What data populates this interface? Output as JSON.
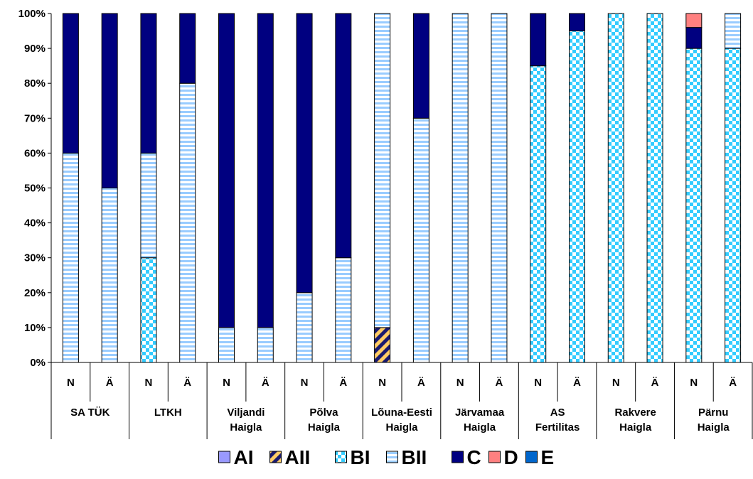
{
  "chart_data": {
    "type": "bar",
    "stacked": true,
    "y_axis": {
      "range": [
        0,
        100
      ],
      "ticks": [
        "0%",
        "10%",
        "20%",
        "30%",
        "40%",
        "50%",
        "60%",
        "70%",
        "80%",
        "90%",
        "100%"
      ]
    },
    "groups": [
      "SA TÜK",
      "LTKH",
      "Viljandi Haigla",
      "Põlva Haigla",
      "Lõuna-Eesti Haigla",
      "Järvamaa Haigla",
      "AS Fertilitas",
      "Rakvere Haigla",
      "Pärnu Haigla"
    ],
    "subcategory_labels": [
      "N",
      "Ä"
    ],
    "categories": [
      "SA TÜK N",
      "SA TÜK Ä",
      "LTKH N",
      "LTKH Ä",
      "Viljandi Haigla N",
      "Viljandi Haigla Ä",
      "Põlva Haigla N",
      "Põlva Haigla Ä",
      "Lõuna-Eesti Haigla N",
      "Lõuna-Eesti Haigla Ä",
      "Järvamaa Haigla N",
      "Järvamaa Haigla Ä",
      "AS Fertilitas N",
      "AS Fertilitas Ä",
      "Rakvere Haigla N",
      "Rakvere Haigla Ä",
      "Pärnu Haigla N",
      "Pärnu Haigla Ä"
    ],
    "series": [
      {
        "name": "AI",
        "color": "#9999ff",
        "pattern": "solid",
        "values": [
          0,
          0,
          0,
          0,
          0,
          0,
          0,
          0,
          0,
          0,
          0,
          0,
          0,
          0,
          0,
          0,
          0,
          0
        ]
      },
      {
        "name": "AII",
        "color": "#1a1a6e",
        "pattern": "diagonal",
        "values": [
          0,
          0,
          0,
          0,
          0,
          0,
          0,
          0,
          10,
          0,
          0,
          0,
          0,
          0,
          0,
          0,
          0,
          0
        ]
      },
      {
        "name": "BI",
        "color": "#33ccff",
        "pattern": "checker",
        "values": [
          0,
          0,
          30,
          0,
          0,
          0,
          0,
          0,
          0,
          0,
          0,
          0,
          85,
          95,
          100,
          100,
          90,
          90
        ]
      },
      {
        "name": "BII",
        "color": "#99ccff",
        "pattern": "hstripe",
        "values": [
          60,
          50,
          30,
          80,
          10,
          10,
          20,
          30,
          90,
          70,
          100,
          100,
          0,
          0,
          0,
          0,
          0,
          10
        ]
      },
      {
        "name": "C",
        "color": "#000080",
        "pattern": "solid",
        "values": [
          40,
          50,
          40,
          20,
          90,
          90,
          80,
          70,
          0,
          30,
          0,
          0,
          15,
          5,
          0,
          0,
          6,
          0
        ]
      },
      {
        "name": "D",
        "color": "#ff8080",
        "pattern": "solid",
        "values": [
          0,
          0,
          0,
          0,
          0,
          0,
          0,
          0,
          0,
          0,
          0,
          0,
          0,
          0,
          0,
          0,
          4,
          0
        ]
      },
      {
        "name": "E",
        "color": "#0066cc",
        "pattern": "solid",
        "values": [
          0,
          0,
          0,
          0,
          0,
          0,
          0,
          0,
          0,
          0,
          0,
          0,
          0,
          0,
          0,
          0,
          0,
          0
        ]
      }
    ],
    "legend_position": "bottom",
    "grid": false
  }
}
